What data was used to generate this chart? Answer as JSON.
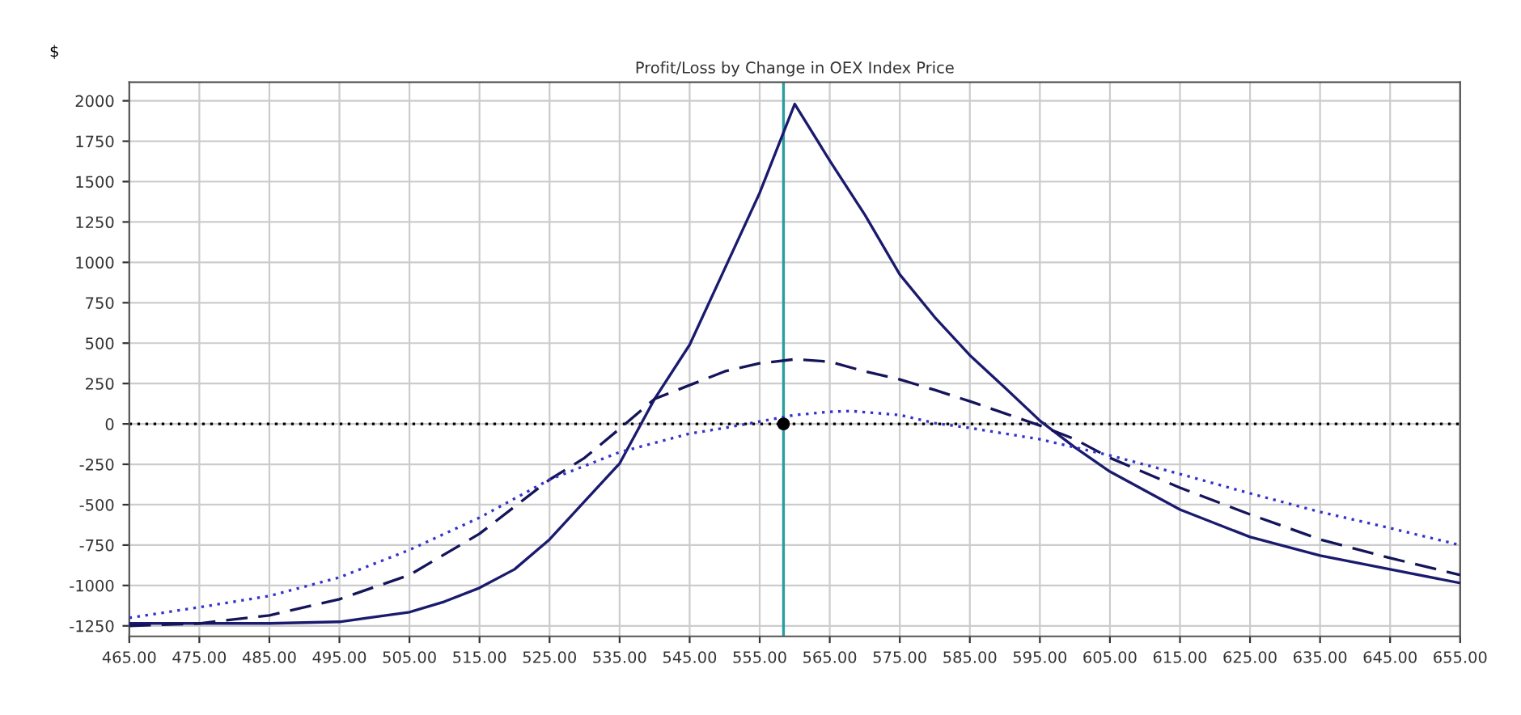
{
  "chart_data": {
    "type": "line",
    "title": "Profit/Loss by Change in OEX Index Price",
    "ylabel": "$",
    "xlim": [
      465,
      655
    ],
    "ylim": [
      -1315,
      2115
    ],
    "xticks": [
      {
        "value": 465,
        "label": "465.00"
      },
      {
        "value": 475,
        "label": "475.00"
      },
      {
        "value": 485,
        "label": "485.00"
      },
      {
        "value": 495,
        "label": "495.00"
      },
      {
        "value": 505,
        "label": "505.00"
      },
      {
        "value": 515,
        "label": "515.00"
      },
      {
        "value": 525,
        "label": "525.00"
      },
      {
        "value": 535,
        "label": "535.00"
      },
      {
        "value": 545,
        "label": "545.00"
      },
      {
        "value": 555,
        "label": "555.00"
      },
      {
        "value": 565,
        "label": "565.00"
      },
      {
        "value": 575,
        "label": "575.00"
      },
      {
        "value": 585,
        "label": "585.00"
      },
      {
        "value": 595,
        "label": "595.00"
      },
      {
        "value": 605,
        "label": "605.00"
      },
      {
        "value": 615,
        "label": "615.00"
      },
      {
        "value": 625,
        "label": "625.00"
      },
      {
        "value": 635,
        "label": "635.00"
      },
      {
        "value": 645,
        "label": "645.00"
      },
      {
        "value": 655,
        "label": "655.00"
      }
    ],
    "yticks": [
      -1250,
      -1000,
      -750,
      -500,
      -250,
      0,
      250,
      500,
      750,
      1000,
      1250,
      1500,
      1750,
      2000
    ],
    "grid": true,
    "legend": false,
    "series": [
      {
        "color": "#1a1a6e",
        "line_style": "solid",
        "x": [
          465,
          475,
          485,
          495,
          505,
          510,
          515,
          520,
          525,
          530,
          535,
          540,
          545,
          550,
          555,
          560,
          565,
          570,
          575,
          580,
          585,
          590,
          595,
          600,
          605,
          615,
          625,
          635,
          645,
          655
        ],
        "values": [
          -1235,
          -1235,
          -1235,
          -1225,
          -1165,
          -1100,
          -1015,
          -900,
          -715,
          -480,
          -245,
          155,
          490,
          960,
          1430,
          1980,
          1630,
          1295,
          925,
          660,
          425,
          225,
          20,
          -145,
          -295,
          -530,
          -700,
          -815,
          -900,
          -985
        ]
      },
      {
        "color": "#14145a",
        "line_style": "dashed",
        "x": [
          465,
          475,
          485,
          495,
          505,
          515,
          525,
          530,
          535,
          540,
          545,
          550,
          555,
          560,
          565,
          570,
          575,
          580,
          585,
          590,
          595,
          600,
          605,
          615,
          625,
          635,
          645,
          655
        ],
        "values": [
          -1250,
          -1235,
          -1185,
          -1085,
          -935,
          -680,
          -345,
          -210,
          -30,
          155,
          240,
          325,
          375,
          400,
          385,
          325,
          275,
          210,
          140,
          65,
          -10,
          -95,
          -210,
          -395,
          -560,
          -715,
          -830,
          -935
        ]
      },
      {
        "color": "#3333cc",
        "line_style": "dotted",
        "x": [
          465,
          475,
          485,
          495,
          505,
          515,
          525,
          535,
          545,
          550,
          555,
          560,
          565,
          568,
          575,
          580,
          585,
          595,
          605,
          615,
          625,
          635,
          645,
          655
        ],
        "values": [
          -1200,
          -1135,
          -1065,
          -950,
          -780,
          -580,
          -345,
          -175,
          -60,
          -25,
          15,
          55,
          75,
          80,
          55,
          5,
          -25,
          -95,
          -195,
          -310,
          -430,
          -545,
          -645,
          -750
        ]
      },
      {
        "type": "scatter",
        "color": "#000000",
        "marker": "circle",
        "x": [
          558.4
        ],
        "values": [
          0
        ]
      }
    ],
    "ref_lines": [
      {
        "axis": "y",
        "value": 0,
        "color": "#000000",
        "line_style": "dotted"
      },
      {
        "axis": "x",
        "value": 558.4,
        "color": "#2a9d9d",
        "line_style": "solid"
      }
    ]
  }
}
